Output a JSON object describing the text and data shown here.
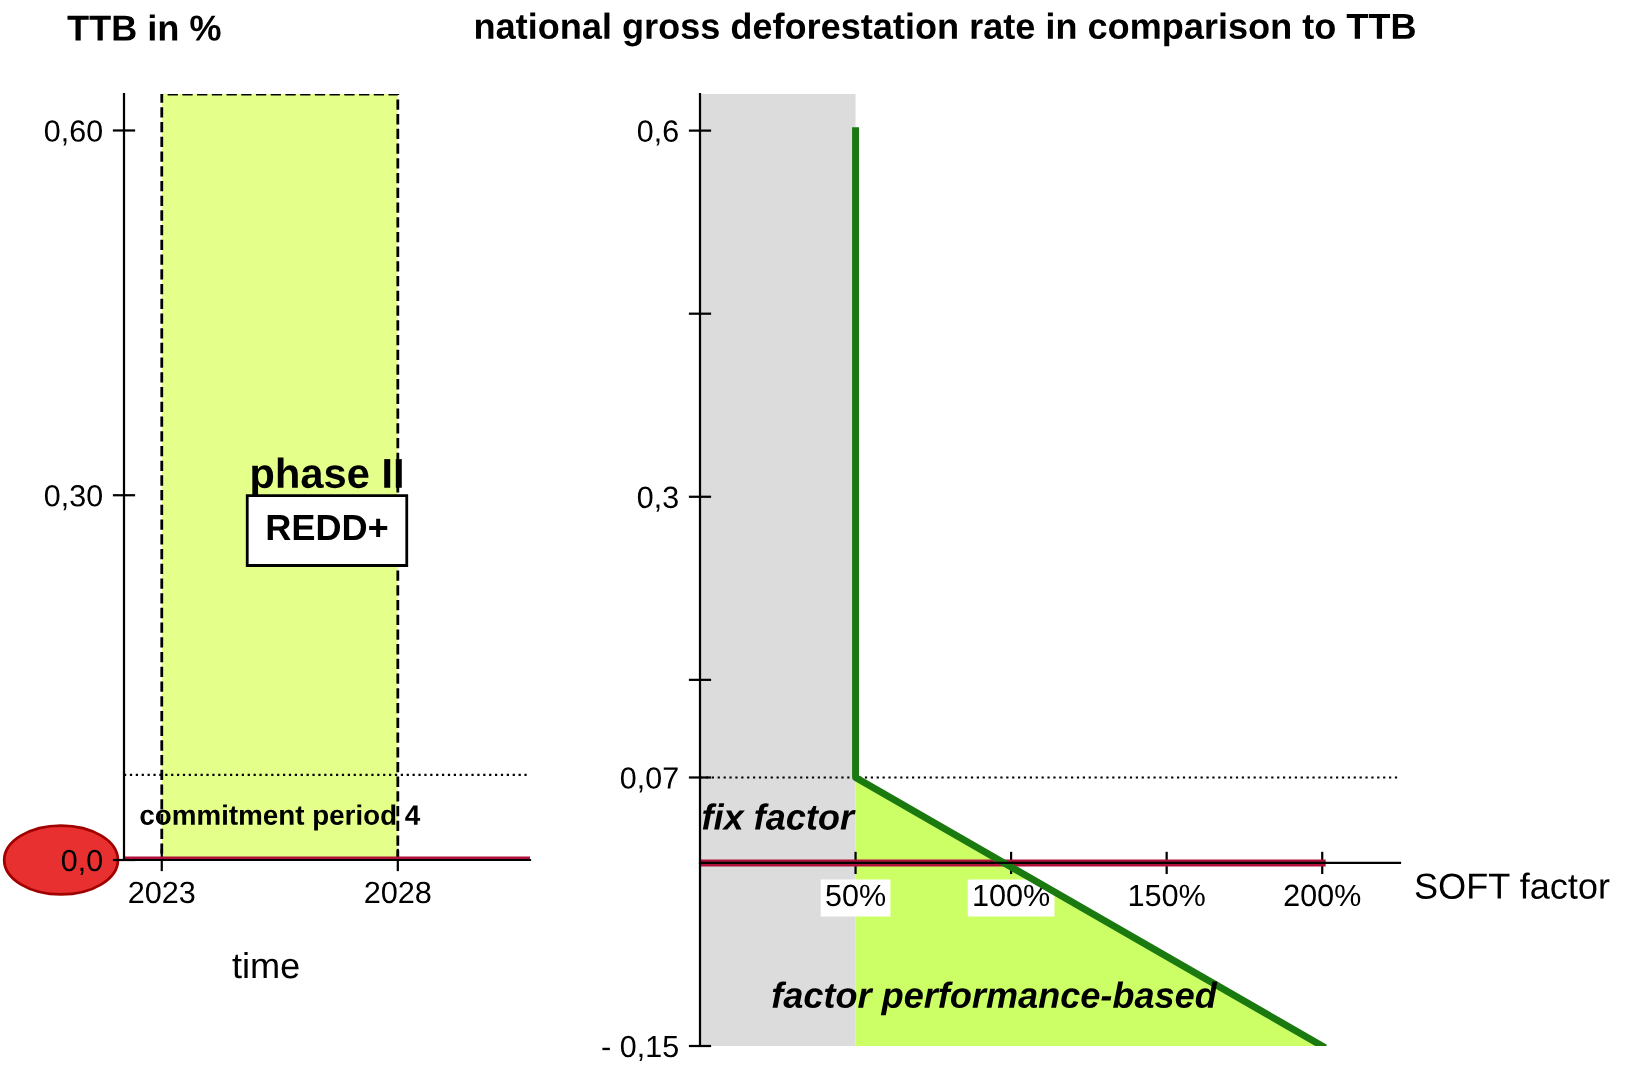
{
  "chart_data": [
    {
      "type": "line",
      "xlabel": "time",
      "ylabel": "TTB in %",
      "xlim": [
        2022.2,
        2030.8
      ],
      "xticks": [
        2023,
        2028
      ],
      "ylim": [
        0,
        0.63
      ],
      "yticks": [
        {
          "value": 0,
          "label": "0,0"
        },
        {
          "value": 0.3,
          "label": "0,30"
        },
        {
          "value": 0.6,
          "label": "0,60"
        }
      ],
      "series": [
        {
          "color": "#b0103a",
          "x": [
            2022.2,
            2030.8
          ],
          "values": [
            0,
            0
          ]
        }
      ],
      "bands": [
        {
          "axis": "x",
          "from": 2023,
          "to": 2028,
          "label": "commitment period 4",
          "color": "#e4ff8a"
        }
      ],
      "ref_lines": [
        {
          "axis": "y",
          "value": 0.07,
          "label": null,
          "color": "#000000",
          "line_style": "dotted"
        }
      ],
      "annotations": [
        "phase II",
        "REDD+"
      ],
      "grid": false
    },
    {
      "type": "line",
      "xlabel": "SOFT factor",
      "ylabel": "national gross deforestation rate in comparison to TTB",
      "xlim": [
        0,
        225
      ],
      "xticks": [
        {
          "value": 50,
          "label": "50%"
        },
        {
          "value": 100,
          "label": "100%"
        },
        {
          "value": 150,
          "label": "150%"
        },
        {
          "value": 200,
          "label": "200%"
        }
      ],
      "ylim": [
        -0.15,
        0.63
      ],
      "yticks": [
        {
          "value": -0.15,
          "label": "- 0,15"
        },
        {
          "value": 0.07,
          "label": "0,07"
        },
        {
          "value": 0.15,
          "label": null
        },
        {
          "value": 0.3,
          "label": "0,3"
        },
        {
          "value": 0.45,
          "label": null
        },
        {
          "value": 0.6,
          "label": "0,6"
        }
      ],
      "series": [
        {
          "type": "area",
          "color": "#ccff66",
          "x": [
            50,
            200
          ],
          "values": [
            0.07,
            -0.15
          ]
        },
        {
          "color": "#b0103a",
          "x": [
            0,
            200
          ],
          "values": [
            0,
            0
          ]
        },
        {
          "type": "line",
          "color": "#1a7a10",
          "x": [
            50,
            50,
            200
          ],
          "values": [
            0.6,
            0.07,
            -0.15
          ]
        }
      ],
      "bands": [
        {
          "axis": "x",
          "from": 0,
          "to": 50,
          "label": "fix factor",
          "color": "#dcdcdc"
        }
      ],
      "ref_lines": [
        {
          "axis": "y",
          "value": 0.07,
          "label": null,
          "color": "#000000",
          "line_style": "dotted"
        }
      ],
      "annotations": [
        "factor performance-based"
      ],
      "grid": false
    }
  ]
}
